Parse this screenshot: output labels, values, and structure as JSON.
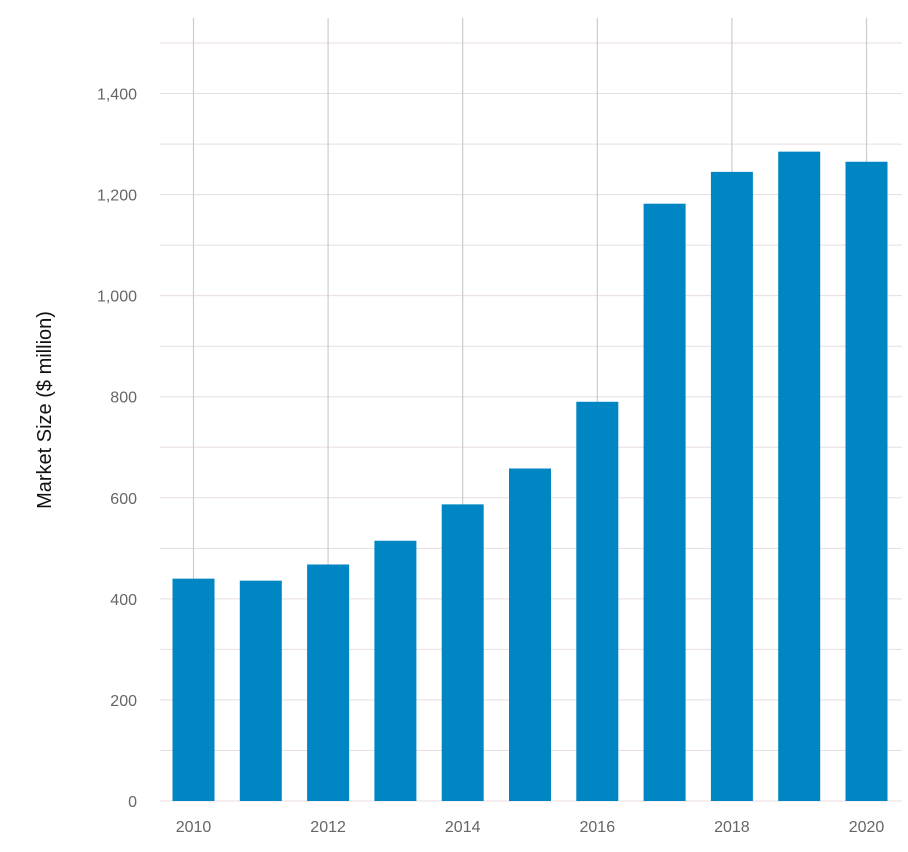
{
  "chart_data": {
    "type": "bar",
    "title": "",
    "xlabel": "",
    "ylabel": "Market Size ($ million)",
    "categories": [
      "2010",
      "2011",
      "2012",
      "2013",
      "2014",
      "2015",
      "2016",
      "2017",
      "2018",
      "2019",
      "2020"
    ],
    "values": [
      440,
      436,
      468,
      515,
      587,
      658,
      790,
      1182,
      1245,
      1285,
      1265
    ],
    "x_tick_labels": [
      "2010",
      "2012",
      "2014",
      "2016",
      "2018",
      "2020"
    ],
    "y_tick_labels": [
      "0",
      "200",
      "400",
      "600",
      "800",
      "1,000",
      "1,200",
      "1,400"
    ],
    "ylim": [
      0,
      1500
    ],
    "grid": true,
    "legend": "none",
    "colors": {
      "bar": "#0086c2",
      "grid": "#e8dde1",
      "vgrid": "#cccccc",
      "tick_text": "#666666",
      "axis_title": "#111111"
    }
  }
}
